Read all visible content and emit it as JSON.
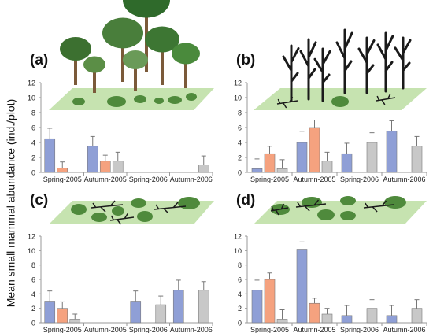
{
  "ylabel": "Mean small mammal abundance (ind./plot)",
  "categories": [
    "Spring-2005",
    "Autumn-2005",
    "Spring-2006",
    "Autumn-2006"
  ],
  "series_colors": [
    "#8f9fd6",
    "#f5a27f",
    "#c8c8c8"
  ],
  "scene_colors": {
    "ground": "#c6e3b0",
    "shrub": "#4f8a3c",
    "foliage": "#3e7a34",
    "trunk": "#7b5a3a",
    "dead": "#1a1a1a"
  },
  "chart_data": [
    {
      "type": "bar",
      "panel": "(a)",
      "categories": [
        "Spring-2005",
        "Autumn-2005",
        "Spring-2006",
        "Autumn-2006"
      ],
      "ylim": [
        0,
        12
      ],
      "yticks": [
        0,
        2,
        4,
        6,
        8,
        10,
        12
      ],
      "grid": false,
      "series": [
        {
          "values": [
            4.5,
            3.5,
            0,
            0
          ],
          "errors": [
            1.4,
            1.3,
            0,
            0
          ]
        },
        {
          "values": [
            0.6,
            1.5,
            0,
            0
          ],
          "errors": [
            0.8,
            0.8,
            0,
            0
          ]
        },
        {
          "values": [
            0,
            1.5,
            0,
            1.0
          ],
          "errors": [
            0,
            1.2,
            0,
            1.2
          ]
        }
      ]
    },
    {
      "type": "bar",
      "panel": "(b)",
      "categories": [
        "Spring-2005",
        "Autumn-2005",
        "Spring-2006",
        "Autumn-2006"
      ],
      "ylim": [
        0,
        12
      ],
      "yticks": [
        0,
        2,
        4,
        6,
        8,
        10,
        12
      ],
      "grid": false,
      "series": [
        {
          "values": [
            0.5,
            4.0,
            2.5,
            5.5
          ],
          "errors": [
            1.3,
            1.5,
            1.4,
            1.4
          ]
        },
        {
          "values": [
            2.5,
            6.0,
            0,
            0
          ],
          "errors": [
            1.0,
            1.0,
            0,
            0
          ]
        },
        {
          "values": [
            0.5,
            1.5,
            4.0,
            3.5
          ],
          "errors": [
            1.2,
            1.2,
            1.3,
            1.3
          ]
        }
      ]
    },
    {
      "type": "bar",
      "panel": "(c)",
      "categories": [
        "Spring-2005",
        "Autumn-2005",
        "Spring-2006",
        "Autumn-2006"
      ],
      "ylim": [
        0,
        12
      ],
      "yticks": [
        0,
        2,
        4,
        6,
        8,
        10,
        12
      ],
      "grid": false,
      "series": [
        {
          "values": [
            3.0,
            0,
            3.0,
            4.5
          ],
          "errors": [
            1.4,
            0,
            1.4,
            1.4
          ]
        },
        {
          "values": [
            2.0,
            0,
            0,
            0
          ],
          "errors": [
            0.9,
            0,
            0,
            0
          ]
        },
        {
          "values": [
            0.5,
            0,
            2.5,
            4.5
          ],
          "errors": [
            0.7,
            0,
            1.2,
            1.2
          ]
        }
      ]
    },
    {
      "type": "bar",
      "panel": "(d)",
      "categories": [
        "Spring-2005",
        "Autumn-2005",
        "Spring-2006",
        "Autumn-2006"
      ],
      "ylim": [
        0,
        12
      ],
      "yticks": [
        0,
        2,
        4,
        6,
        8,
        10,
        12
      ],
      "grid": false,
      "series": [
        {
          "values": [
            4.5,
            10.2,
            1.0,
            1.0
          ],
          "errors": [
            1.4,
            1.0,
            1.4,
            1.4
          ]
        },
        {
          "values": [
            6.0,
            2.7,
            0,
            0
          ],
          "errors": [
            0.9,
            0.7,
            0,
            0
          ]
        },
        {
          "values": [
            0.5,
            1.2,
            2.0,
            2.0
          ],
          "errors": [
            1.3,
            0.8,
            1.2,
            1.2
          ]
        }
      ]
    }
  ]
}
